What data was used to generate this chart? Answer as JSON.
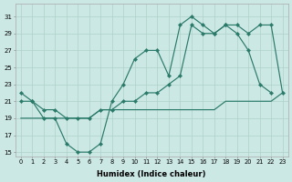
{
  "xlabel": "Humidex (Indice chaleur)",
  "yticks": [
    15,
    17,
    19,
    21,
    23,
    25,
    27,
    29,
    31
  ],
  "xticks": [
    0,
    1,
    2,
    3,
    4,
    5,
    6,
    7,
    8,
    9,
    10,
    11,
    12,
    13,
    14,
    15,
    16,
    17,
    18,
    19,
    20,
    21,
    22,
    23
  ],
  "ylim": [
    14.5,
    32.5
  ],
  "xlim": [
    -0.5,
    23.5
  ],
  "line_color": "#2a7a6a",
  "bg_color": "#cce8e4",
  "grid_color": "#aed0ca",
  "line1_x": [
    0,
    1,
    2,
    3,
    4,
    5,
    6,
    7,
    8,
    9,
    10,
    11,
    12,
    13,
    14,
    15,
    16,
    17,
    18,
    19,
    20,
    21,
    22
  ],
  "line1_y": [
    22,
    21,
    19,
    19,
    16,
    15,
    15,
    16,
    21,
    23,
    26,
    27,
    27,
    24,
    30,
    31,
    30,
    29,
    30,
    29,
    27,
    23,
    22
  ],
  "line2_x": [
    0,
    1,
    2,
    3,
    4,
    5,
    6,
    7,
    8,
    9,
    10,
    11,
    12,
    13,
    14,
    15,
    16,
    17,
    18,
    19,
    20,
    21,
    22,
    23
  ],
  "line2_y": [
    21,
    21,
    20,
    20,
    19,
    19,
    19,
    20,
    20,
    21,
    21,
    22,
    22,
    23,
    24,
    30,
    29,
    29,
    30,
    30,
    29,
    30,
    30,
    22
  ],
  "line3_x": [
    0,
    1,
    2,
    3,
    4,
    5,
    6,
    7,
    8,
    9,
    10,
    11,
    12,
    13,
    14,
    15,
    16,
    17,
    18,
    19,
    20,
    21,
    22,
    23
  ],
  "line3_y": [
    19,
    19,
    19,
    19,
    19,
    19,
    19,
    20,
    20,
    20,
    20,
    20,
    20,
    20,
    20,
    20,
    20,
    20,
    21,
    21,
    21,
    21,
    21,
    22
  ]
}
